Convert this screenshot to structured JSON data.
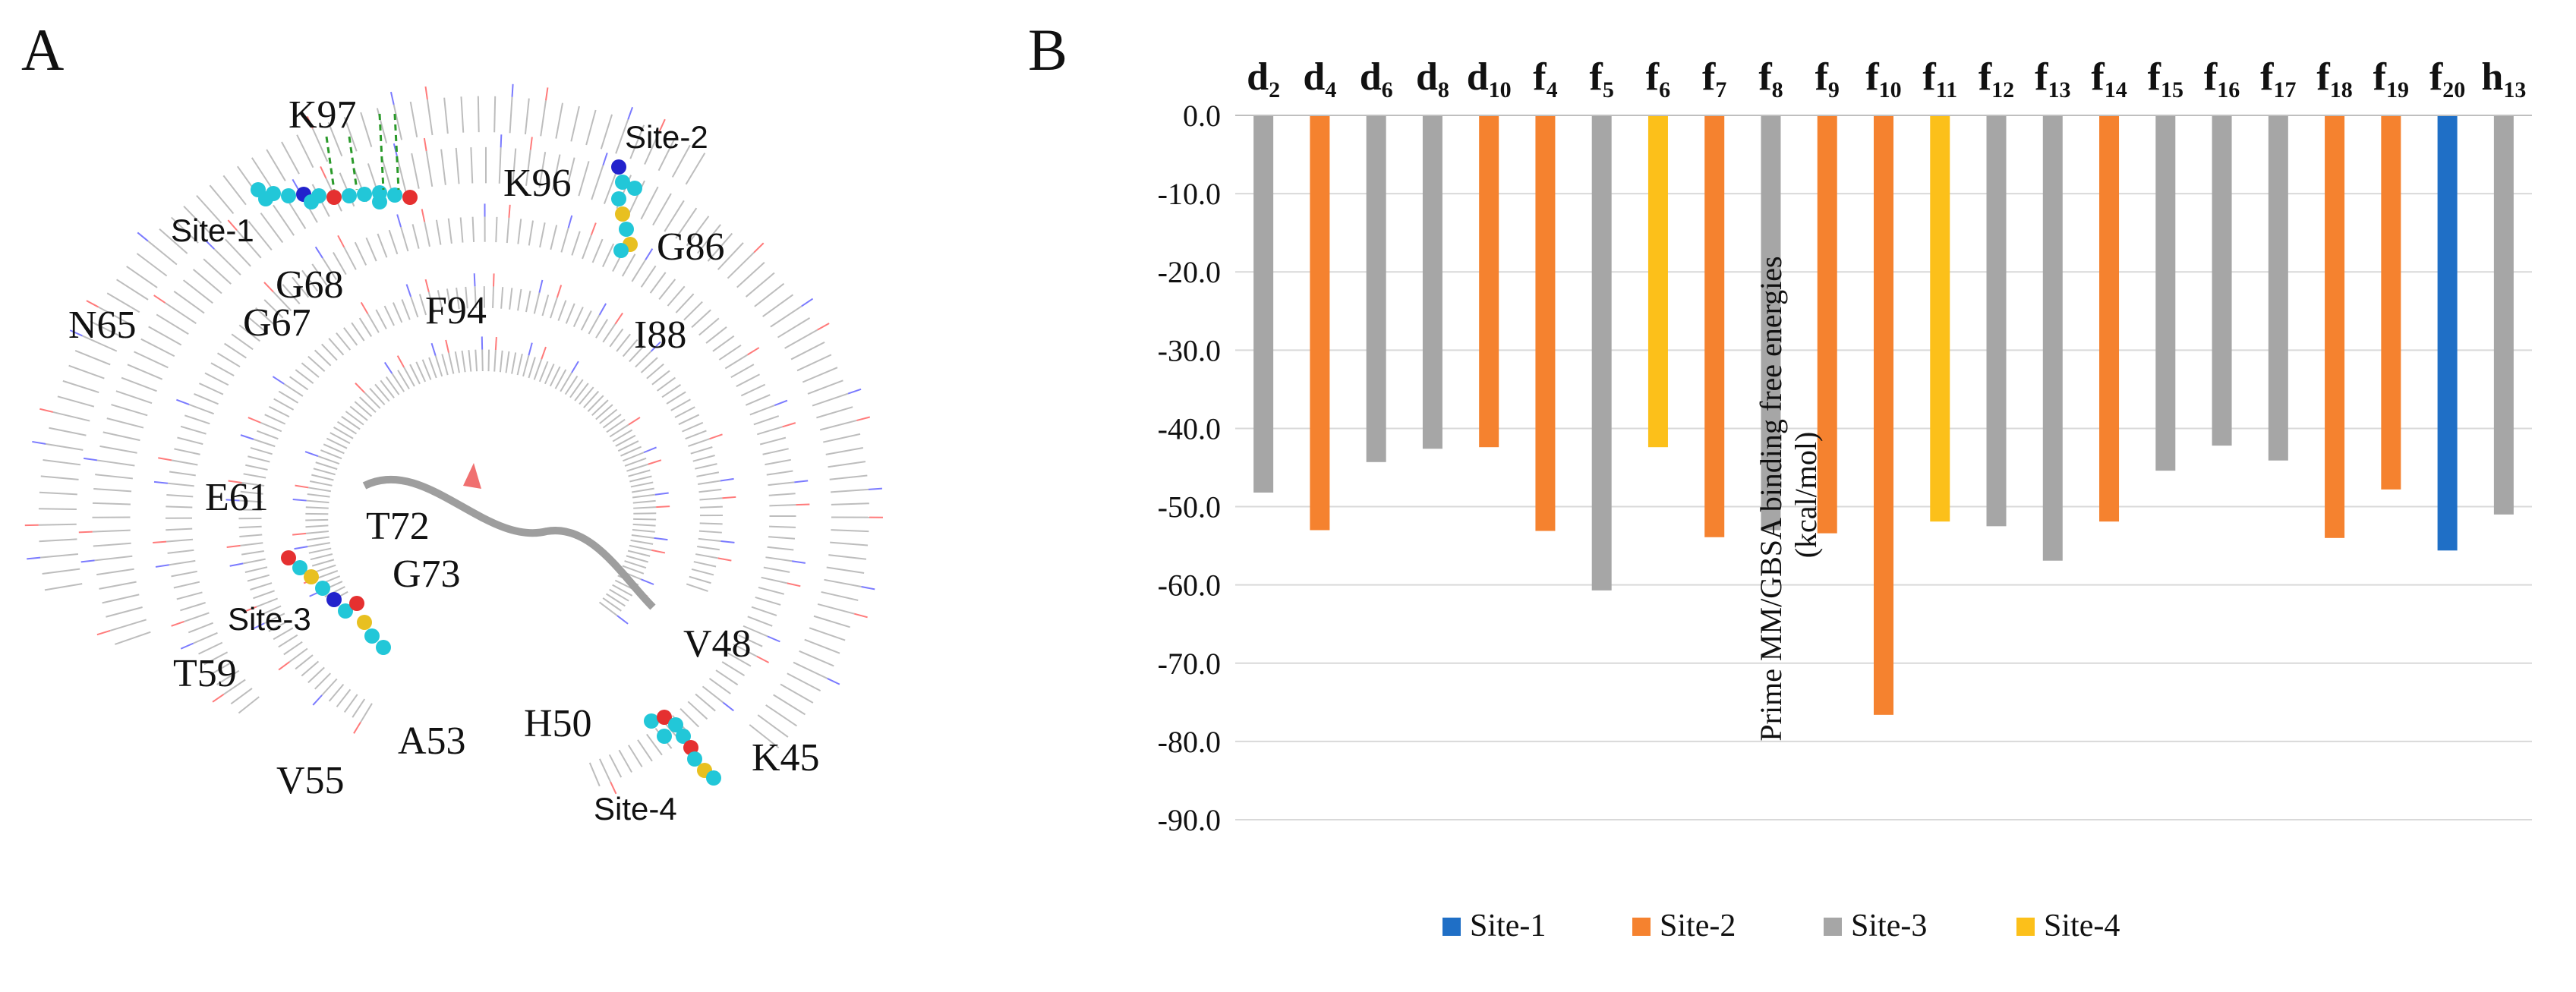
{
  "panel_a": {
    "label": "A",
    "site_labels": [
      "Site-1",
      "Site-2",
      "Site-3",
      "Site-4"
    ],
    "residue_labels": [
      "K97",
      "K96",
      "G86",
      "G68",
      "N65",
      "G67",
      "F94",
      "I88",
      "E61",
      "T72",
      "G73",
      "V48",
      "T59",
      "H50",
      "K45",
      "A53",
      "V55"
    ]
  },
  "panel_b": {
    "label": "B"
  },
  "chart_data": {
    "type": "bar",
    "categories": [
      {
        "base": "d",
        "sub": "2"
      },
      {
        "base": "d",
        "sub": "4"
      },
      {
        "base": "d",
        "sub": "6"
      },
      {
        "base": "d",
        "sub": "8"
      },
      {
        "base": "d",
        "sub": "10"
      },
      {
        "base": "f",
        "sub": "4"
      },
      {
        "base": "f",
        "sub": "5"
      },
      {
        "base": "f",
        "sub": "6"
      },
      {
        "base": "f",
        "sub": "7"
      },
      {
        "base": "f",
        "sub": "8"
      },
      {
        "base": "f",
        "sub": "9"
      },
      {
        "base": "f",
        "sub": "10"
      },
      {
        "base": "f",
        "sub": "11"
      },
      {
        "base": "f",
        "sub": "12"
      },
      {
        "base": "f",
        "sub": "13"
      },
      {
        "base": "f",
        "sub": "14"
      },
      {
        "base": "f",
        "sub": "15"
      },
      {
        "base": "f",
        "sub": "16"
      },
      {
        "base": "f",
        "sub": "17"
      },
      {
        "base": "f",
        "sub": "18"
      },
      {
        "base": "f",
        "sub": "19"
      },
      {
        "base": "f",
        "sub": "20"
      },
      {
        "base": "h",
        "sub": "13"
      }
    ],
    "values": [
      -48.2,
      -53.0,
      -44.3,
      -42.6,
      -42.4,
      -53.1,
      -60.7,
      -42.4,
      -53.9,
      -53.0,
      -53.4,
      -76.6,
      -51.9,
      -52.5,
      -56.9,
      -51.9,
      -45.4,
      -42.2,
      -44.1,
      -54.0,
      -47.8,
      -55.6,
      -51.0
    ],
    "sites": [
      "Site-3",
      "Site-2",
      "Site-3",
      "Site-3",
      "Site-2",
      "Site-2",
      "Site-3",
      "Site-4",
      "Site-2",
      "Site-3",
      "Site-2",
      "Site-2",
      "Site-4",
      "Site-3",
      "Site-3",
      "Site-2",
      "Site-3",
      "Site-3",
      "Site-3",
      "Site-2",
      "Site-2",
      "Site-1",
      "Site-3"
    ],
    "legend": [
      {
        "name": "Site-1",
        "color": "#1f6fc6"
      },
      {
        "name": "Site-2",
        "color": "#f5822f"
      },
      {
        "name": "Site-3",
        "color": "#a6a6a6"
      },
      {
        "name": "Site-4",
        "color": "#fcc01a"
      }
    ],
    "ylabel_line1": "Prime MM/GBSA binding free energies",
    "ylabel_line2": "(kcal/mol)",
    "ylim": [
      -90,
      0
    ],
    "yticks": [
      "0.0",
      "-10.0",
      "-20.0",
      "-30.0",
      "-40.0",
      "-50.0",
      "-60.0",
      "-70.0",
      "-80.0",
      "-90.0"
    ],
    "grid": true,
    "legend_position": "bottom",
    "category_axis_position": "top"
  }
}
